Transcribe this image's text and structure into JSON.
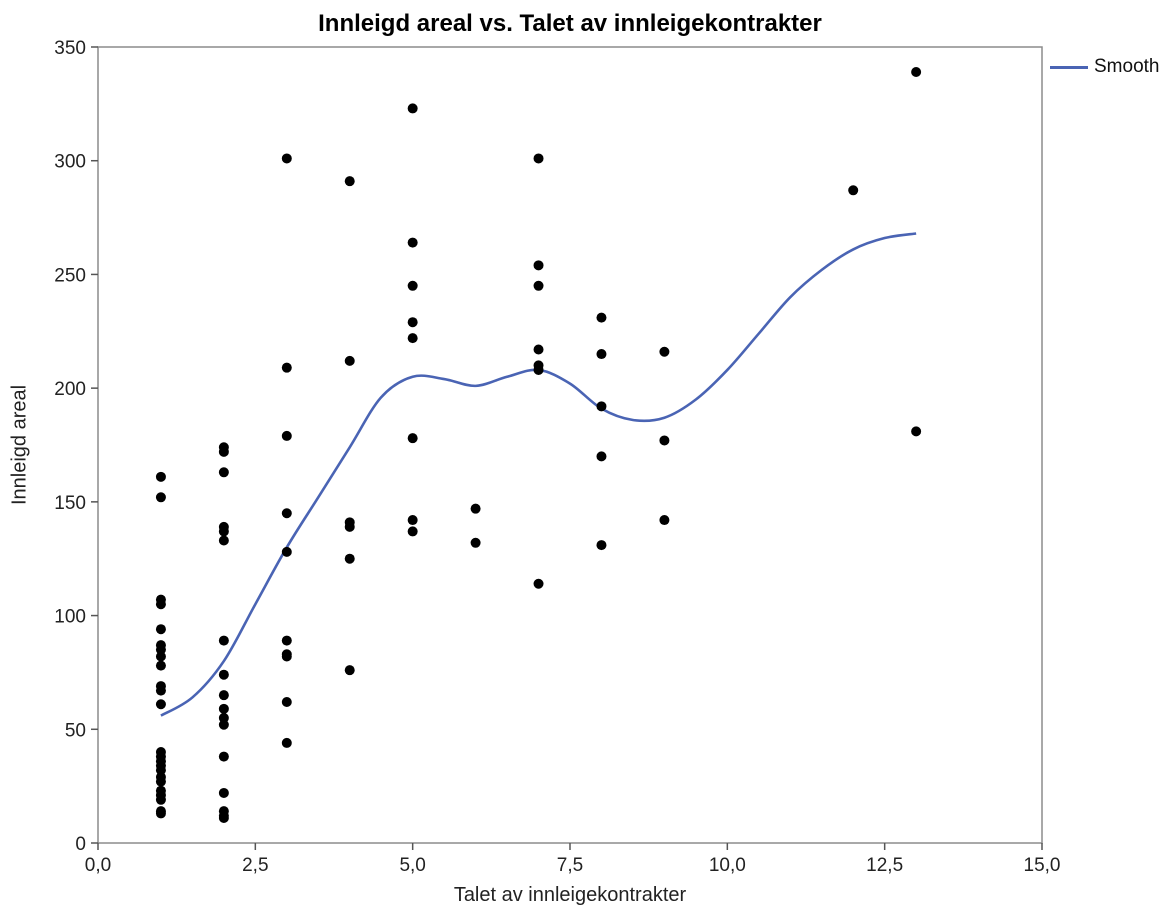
{
  "chart_data": {
    "type": "scatter",
    "title": "Innleigd areal vs. Talet av innleigekontrakter",
    "xlabel": "Talet av innleigekontrakter",
    "ylabel": "Innleigd areal",
    "xlim": [
      0,
      15
    ],
    "ylim": [
      0,
      350
    ],
    "x_ticks": [
      "0,0",
      "2,5",
      "5,0",
      "7,5",
      "10,0",
      "12,5",
      "15,0"
    ],
    "x_tick_values": [
      0,
      2.5,
      5,
      7.5,
      10,
      12.5,
      15
    ],
    "y_ticks": [
      "0",
      "50",
      "100",
      "150",
      "200",
      "250",
      "300",
      "350"
    ],
    "y_tick_values": [
      0,
      50,
      100,
      150,
      200,
      250,
      300,
      350
    ],
    "grid": false,
    "legend": "top-right",
    "point_color": "#000000",
    "points": [
      [
        1,
        161
      ],
      [
        1,
        152
      ],
      [
        1,
        107
      ],
      [
        1,
        105
      ],
      [
        1,
        94
      ],
      [
        1,
        87
      ],
      [
        1,
        85
      ],
      [
        1,
        82
      ],
      [
        1,
        78
      ],
      [
        1,
        69
      ],
      [
        1,
        67
      ],
      [
        1,
        61
      ],
      [
        1,
        40
      ],
      [
        1,
        38
      ],
      [
        1,
        36
      ],
      [
        1,
        34
      ],
      [
        1,
        32
      ],
      [
        1,
        29
      ],
      [
        1,
        27
      ],
      [
        1,
        23
      ],
      [
        1,
        21
      ],
      [
        1,
        19
      ],
      [
        1,
        14
      ],
      [
        1,
        13
      ],
      [
        2,
        174
      ],
      [
        2,
        172
      ],
      [
        2,
        163
      ],
      [
        2,
        139
      ],
      [
        2,
        137
      ],
      [
        2,
        133
      ],
      [
        2,
        89
      ],
      [
        2,
        74
      ],
      [
        2,
        65
      ],
      [
        2,
        59
      ],
      [
        2,
        55
      ],
      [
        2,
        52
      ],
      [
        2,
        38
      ],
      [
        2,
        22
      ],
      [
        2,
        14
      ],
      [
        2,
        12
      ],
      [
        2,
        11
      ],
      [
        3,
        301
      ],
      [
        3,
        209
      ],
      [
        3,
        179
      ],
      [
        3,
        145
      ],
      [
        3,
        128
      ],
      [
        3,
        89
      ],
      [
        3,
        83
      ],
      [
        3,
        82
      ],
      [
        3,
        62
      ],
      [
        3,
        44
      ],
      [
        4,
        291
      ],
      [
        4,
        212
      ],
      [
        4,
        141
      ],
      [
        4,
        139
      ],
      [
        4,
        125
      ],
      [
        4,
        76
      ],
      [
        5,
        323
      ],
      [
        5,
        264
      ],
      [
        5,
        245
      ],
      [
        5,
        229
      ],
      [
        5,
        222
      ],
      [
        5,
        178
      ],
      [
        5,
        142
      ],
      [
        5,
        137
      ],
      [
        6,
        147
      ],
      [
        6,
        132
      ],
      [
        7,
        301
      ],
      [
        7,
        254
      ],
      [
        7,
        245
      ],
      [
        7,
        217
      ],
      [
        7,
        210
      ],
      [
        7,
        208
      ],
      [
        7,
        114
      ],
      [
        8,
        231
      ],
      [
        8,
        215
      ],
      [
        8,
        192
      ],
      [
        8,
        170
      ],
      [
        8,
        131
      ],
      [
        9,
        216
      ],
      [
        9,
        177
      ],
      [
        9,
        142
      ],
      [
        12,
        287
      ],
      [
        13,
        339
      ],
      [
        13,
        181
      ]
    ],
    "series": [
      {
        "name": "Smooth",
        "color": "#4a64b4",
        "points": [
          [
            1,
            56
          ],
          [
            1.5,
            64
          ],
          [
            2,
            80
          ],
          [
            2.5,
            105
          ],
          [
            3,
            130
          ],
          [
            3.5,
            152
          ],
          [
            4,
            174
          ],
          [
            4.5,
            196
          ],
          [
            5,
            205
          ],
          [
            5.5,
            204
          ],
          [
            6,
            201
          ],
          [
            6.5,
            205
          ],
          [
            7,
            208
          ],
          [
            7.5,
            202
          ],
          [
            8,
            191
          ],
          [
            8.5,
            186
          ],
          [
            9,
            187
          ],
          [
            9.5,
            195
          ],
          [
            10,
            208
          ],
          [
            10.5,
            224
          ],
          [
            11,
            240
          ],
          [
            11.5,
            252
          ],
          [
            12,
            261
          ],
          [
            12.5,
            266
          ],
          [
            13,
            268
          ]
        ]
      }
    ]
  }
}
